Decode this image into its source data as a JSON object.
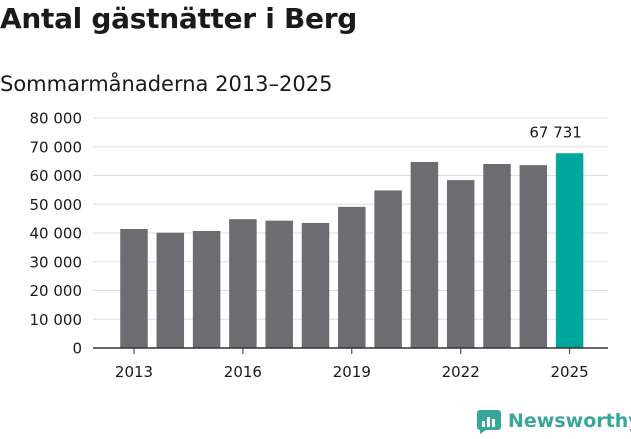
{
  "header": {
    "title": "Antal gästnätter i Berg",
    "subtitle": "Sommarmånaderna 2013–2025"
  },
  "brand": {
    "name": "Newsworthy",
    "icon": "newsworthy-logo-icon",
    "color": "#3aa69a"
  },
  "chart_data": {
    "type": "bar",
    "categories": [
      "2013",
      "2014",
      "2015",
      "2016",
      "2017",
      "2018",
      "2019",
      "2020",
      "2021",
      "2022",
      "2023",
      "2024",
      "2025"
    ],
    "values": [
      41400,
      40100,
      40700,
      44800,
      44300,
      43500,
      49100,
      54800,
      64700,
      58400,
      64000,
      63600,
      67731
    ],
    "x_tick_labels": [
      "2013",
      "2016",
      "2019",
      "2022",
      "2025"
    ],
    "y_tick_labels": [
      "0",
      "10 000",
      "20 000",
      "30 000",
      "40 000",
      "50 000",
      "60 000",
      "70 000",
      "80 000"
    ],
    "ylim": [
      0,
      80000
    ],
    "ystep": 10000,
    "data_labels": [
      {
        "category": "2025",
        "text": "67 731"
      }
    ],
    "colors": {
      "default": "#6d6c70",
      "highlight": "#00a69b"
    },
    "highlight_category": "2025",
    "grid": true,
    "title": "Antal gästnätter i Berg",
    "xlabel": "",
    "ylabel": ""
  }
}
